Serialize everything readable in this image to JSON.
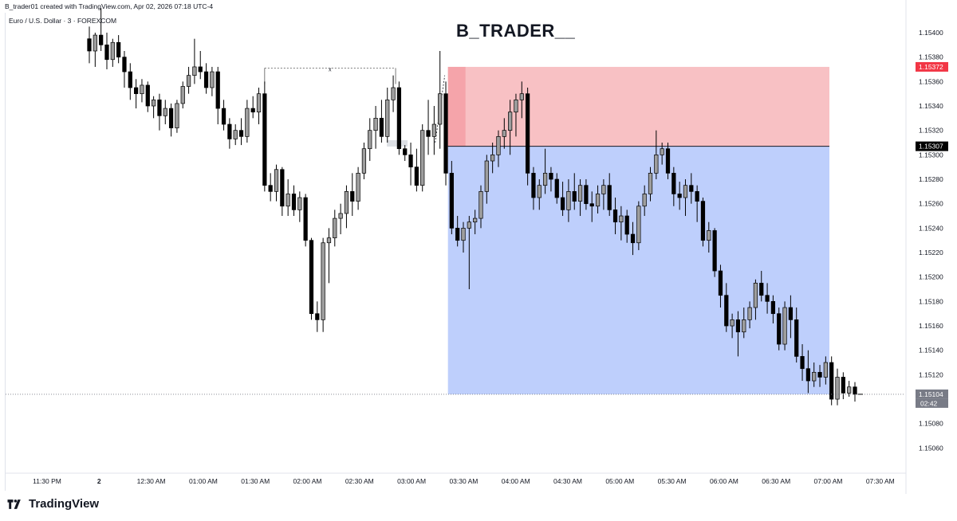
{
  "header": {
    "credit": "B_trader01 created with TradingView.com, Apr 02, 2026 07:18 UTC-4",
    "symbol": "Euro / U.S. Dollar · 3 · FOREXCOM"
  },
  "title": "B_TRADER__",
  "brand": {
    "name": "TradingView",
    "logo_icon": "tradingview-logo-icon"
  },
  "colors": {
    "up_candle": "#9e9e9e",
    "down_candle": "#000000",
    "stop_zone": "#f7b6ba",
    "target_zone": "#b3c7fb",
    "stop_label": "#f23645",
    "entry_label": "#000000",
    "last_label": "#787b86"
  },
  "chart_data": {
    "type": "candlestick",
    "symbol": "EUR/USD",
    "timeframe": "3",
    "ylim": [
      1.15045,
      1.1542
    ],
    "y_ticks": [
      "1.15400",
      "1.15380",
      "1.15360",
      "1.15340",
      "1.15320",
      "1.15300",
      "1.15280",
      "1.15260",
      "1.15240",
      "1.15220",
      "1.15200",
      "1.15180",
      "1.15160",
      "1.15140",
      "1.15120",
      "1.15080",
      "1.15060"
    ],
    "x_ticks": [
      "11:30 PM",
      "2",
      "12:30 AM",
      "01:00 AM",
      "01:30 AM",
      "02:00 AM",
      "02:30 AM",
      "03:00 AM",
      "03:30 AM",
      "04:00 AM",
      "04:30 AM",
      "05:00 AM",
      "05:30 AM",
      "06:00 AM",
      "06:30 AM",
      "07:00 AM",
      "07:30 AM"
    ],
    "price_labels": {
      "stop": "1.15372",
      "entry": "1.15307",
      "last": "1.15104",
      "countdown": "02:42"
    },
    "position": {
      "entry": 1.15307,
      "stop": 1.15372,
      "target": 1.15104
    },
    "range_marker": {
      "label": "x",
      "price": 1.15371
    },
    "candles": [
      [
        1.15395,
        1.15405,
        1.15375,
        1.15385
      ],
      [
        1.15385,
        1.154,
        1.15372,
        1.15398
      ],
      [
        1.15398,
        1.1542,
        1.15385,
        1.1539
      ],
      [
        1.1539,
        1.154,
        1.1537,
        1.15378
      ],
      [
        1.15378,
        1.15395,
        1.15372,
        1.15392
      ],
      [
        1.15392,
        1.15398,
        1.15375,
        1.1538
      ],
      [
        1.1538,
        1.15385,
        1.15355,
        1.15368
      ],
      [
        1.15368,
        1.15375,
        1.15345,
        1.15355
      ],
      [
        1.15355,
        1.15362,
        1.15338,
        1.1535
      ],
      [
        1.1535,
        1.15362,
        1.15343,
        1.15357
      ],
      [
        1.15357,
        1.1536,
        1.15335,
        1.1534
      ],
      [
        1.1534,
        1.15348,
        1.1533,
        1.15345
      ],
      [
        1.15345,
        1.1535,
        1.1532,
        1.15332
      ],
      [
        1.15332,
        1.15345,
        1.15325,
        1.15338
      ],
      [
        1.15338,
        1.15342,
        1.15315,
        1.15322
      ],
      [
        1.15322,
        1.15345,
        1.15318,
        1.15342
      ],
      [
        1.15342,
        1.1536,
        1.15338,
        1.15356
      ],
      [
        1.15356,
        1.15372,
        1.1535,
        1.15365
      ],
      [
        1.15365,
        1.15395,
        1.15358,
        1.15372
      ],
      [
        1.15372,
        1.15385,
        1.15362,
        1.15368
      ],
      [
        1.15368,
        1.15375,
        1.1535,
        1.15355
      ],
      [
        1.15355,
        1.15372,
        1.15348,
        1.15368
      ],
      [
        1.15368,
        1.15372,
        1.15325,
        1.15338
      ],
      [
        1.15338,
        1.15345,
        1.1532,
        1.15325
      ],
      [
        1.15325,
        1.1533,
        1.15305,
        1.15313
      ],
      [
        1.15313,
        1.15325,
        1.15308,
        1.1532
      ],
      [
        1.1532,
        1.1533,
        1.15308,
        1.15315
      ],
      [
        1.15315,
        1.15345,
        1.1531,
        1.15338
      ],
      [
        1.15338,
        1.15348,
        1.1533,
        1.15335
      ],
      [
        1.15335,
        1.15355,
        1.15325,
        1.1535
      ],
      [
        1.1535,
        1.1536,
        1.1527,
        1.15275
      ],
      [
        1.15275,
        1.15285,
        1.15262,
        1.1527
      ],
      [
        1.1527,
        1.15292,
        1.15262,
        1.15288
      ],
      [
        1.15288,
        1.1529,
        1.1525,
        1.15258
      ],
      [
        1.15258,
        1.1528,
        1.1525,
        1.15268
      ],
      [
        1.15268,
        1.15275,
        1.1525,
        1.15255
      ],
      [
        1.15255,
        1.1527,
        1.15245,
        1.15265
      ],
      [
        1.15265,
        1.15268,
        1.15225,
        1.1523
      ],
      [
        1.1523,
        1.15232,
        1.15165,
        1.1517
      ],
      [
        1.1517,
        1.1518,
        1.15155,
        1.15165
      ],
      [
        1.15165,
        1.15232,
        1.15155,
        1.15228
      ],
      [
        1.15228,
        1.1524,
        1.15195,
        1.15232
      ],
      [
        1.15232,
        1.15255,
        1.15225,
        1.15248
      ],
      [
        1.15248,
        1.1526,
        1.15235,
        1.15252
      ],
      [
        1.15252,
        1.15275,
        1.1524,
        1.1527
      ],
      [
        1.1527,
        1.15285,
        1.1525,
        1.15262
      ],
      [
        1.15262,
        1.1529,
        1.15255,
        1.15285
      ],
      [
        1.15285,
        1.1531,
        1.1528,
        1.15305
      ],
      [
        1.15305,
        1.1533,
        1.15295,
        1.1532
      ],
      [
        1.1532,
        1.1534,
        1.15305,
        1.1533
      ],
      [
        1.1533,
        1.15345,
        1.1531,
        1.15315
      ],
      [
        1.15315,
        1.15355,
        1.1531,
        1.15345
      ],
      [
        1.15345,
        1.15365,
        1.15335,
        1.15355
      ],
      [
        1.15355,
        1.1536,
        1.153,
        1.15305
      ],
      [
        1.15305,
        1.15308,
        1.15295,
        1.153
      ],
      [
        1.153,
        1.1531,
        1.15275,
        1.1529
      ],
      [
        1.1529,
        1.15305,
        1.1527,
        1.15275
      ],
      [
        1.15275,
        1.15325,
        1.1527,
        1.1532
      ],
      [
        1.1532,
        1.15345,
        1.153,
        1.15315
      ],
      [
        1.15315,
        1.1534,
        1.153,
        1.15325
      ],
      [
        1.15325,
        1.15385,
        1.15305,
        1.1535
      ],
      [
        1.1535,
        1.1536,
        1.15275,
        1.15285
      ],
      [
        1.15285,
        1.15295,
        1.15235,
        1.1524
      ],
      [
        1.1524,
        1.1525,
        1.15225,
        1.1523
      ],
      [
        1.1523,
        1.15245,
        1.1522,
        1.1524
      ],
      [
        1.1524,
        1.1525,
        1.1519,
        1.15245
      ],
      [
        1.15245,
        1.15255,
        1.15235,
        1.15248
      ],
      [
        1.15248,
        1.15275,
        1.1524,
        1.1527
      ],
      [
        1.1527,
        1.153,
        1.1526,
        1.15295
      ],
      [
        1.15295,
        1.1531,
        1.15285,
        1.153
      ],
      [
        1.153,
        1.1532,
        1.1529,
        1.15315
      ],
      [
        1.15315,
        1.1533,
        1.15305,
        1.1532
      ],
      [
        1.1532,
        1.15345,
        1.153,
        1.15335
      ],
      [
        1.15335,
        1.1535,
        1.15315,
        1.15345
      ],
      [
        1.15345,
        1.1536,
        1.1533,
        1.1535
      ],
      [
        1.1535,
        1.15355,
        1.15275,
        1.15285
      ],
      [
        1.15285,
        1.1529,
        1.15255,
        1.15265
      ],
      [
        1.15265,
        1.1528,
        1.15255,
        1.15275
      ],
      [
        1.15275,
        1.15305,
        1.15268,
        1.15285
      ],
      [
        1.15285,
        1.1529,
        1.1527,
        1.1528
      ],
      [
        1.1528,
        1.15285,
        1.1526,
        1.15265
      ],
      [
        1.15265,
        1.15278,
        1.1525,
        1.15255
      ],
      [
        1.15255,
        1.1528,
        1.15245,
        1.1527
      ],
      [
        1.1527,
        1.15285,
        1.15255,
        1.15262
      ],
      [
        1.15262,
        1.1528,
        1.1525,
        1.15275
      ],
      [
        1.15275,
        1.1528,
        1.15255,
        1.1526
      ],
      [
        1.1526,
        1.1527,
        1.15245,
        1.15258
      ],
      [
        1.15258,
        1.15275,
        1.15252,
        1.15268
      ],
      [
        1.15268,
        1.1528,
        1.15255,
        1.15275
      ],
      [
        1.15275,
        1.15285,
        1.1525,
        1.15255
      ],
      [
        1.15255,
        1.15265,
        1.15235,
        1.15245
      ],
      [
        1.15245,
        1.15258,
        1.1523,
        1.1525
      ],
      [
        1.1525,
        1.15255,
        1.15228,
        1.15235
      ],
      [
        1.15235,
        1.15245,
        1.15218,
        1.15228
      ],
      [
        1.15228,
        1.15262,
        1.15222,
        1.15258
      ],
      [
        1.15258,
        1.15275,
        1.1525,
        1.15268
      ],
      [
        1.15268,
        1.1529,
        1.15262,
        1.15285
      ],
      [
        1.15285,
        1.1532,
        1.1528,
        1.153
      ],
      [
        1.153,
        1.1531,
        1.15292,
        1.15305
      ],
      [
        1.15305,
        1.1531,
        1.1528,
        1.15285
      ],
      [
        1.15285,
        1.1529,
        1.15258,
        1.15268
      ],
      [
        1.15268,
        1.15278,
        1.15255,
        1.15265
      ],
      [
        1.15265,
        1.1528,
        1.1525,
        1.15275
      ],
      [
        1.15275,
        1.15285,
        1.1526,
        1.1527
      ],
      [
        1.1527,
        1.15275,
        1.15245,
        1.15262
      ],
      [
        1.15262,
        1.15265,
        1.15225,
        1.1523
      ],
      [
        1.1523,
        1.15245,
        1.1522,
        1.15238
      ],
      [
        1.15238,
        1.1524,
        1.152,
        1.15205
      ],
      [
        1.15205,
        1.1521,
        1.15175,
        1.15185
      ],
      [
        1.15185,
        1.15195,
        1.15155,
        1.1516
      ],
      [
        1.1516,
        1.1517,
        1.1515,
        1.15165
      ],
      [
        1.15165,
        1.15172,
        1.15135,
        1.15155
      ],
      [
        1.15155,
        1.15175,
        1.1515,
        1.15165
      ],
      [
        1.15165,
        1.1518,
        1.15158,
        1.15175
      ],
      [
        1.15175,
        1.15198,
        1.15165,
        1.15195
      ],
      [
        1.15195,
        1.15205,
        1.1518,
        1.15185
      ],
      [
        1.15185,
        1.15195,
        1.1517,
        1.1518
      ],
      [
        1.1518,
        1.15185,
        1.15162,
        1.1517
      ],
      [
        1.1517,
        1.15175,
        1.1514,
        1.15145
      ],
      [
        1.15145,
        1.1518,
        1.1514,
        1.15175
      ],
      [
        1.15175,
        1.15185,
        1.1515,
        1.15165
      ],
      [
        1.15165,
        1.15175,
        1.1513,
        1.15135
      ],
      [
        1.15135,
        1.15145,
        1.15115,
        1.15125
      ],
      [
        1.15125,
        1.1514,
        1.15105,
        1.15115
      ],
      [
        1.15115,
        1.1513,
        1.1511,
        1.15122
      ],
      [
        1.15122,
        1.15128,
        1.1511,
        1.15118
      ],
      [
        1.15118,
        1.15135,
        1.15112,
        1.1513
      ],
      [
        1.1513,
        1.15135,
        1.15095,
        1.151
      ],
      [
        1.151,
        1.15125,
        1.15095,
        1.15118
      ],
      [
        1.15118,
        1.15122,
        1.151,
        1.15105
      ],
      [
        1.15105,
        1.15115,
        1.15102,
        1.1511
      ],
      [
        1.1511,
        1.15114,
        1.15098,
        1.15104
      ]
    ]
  }
}
